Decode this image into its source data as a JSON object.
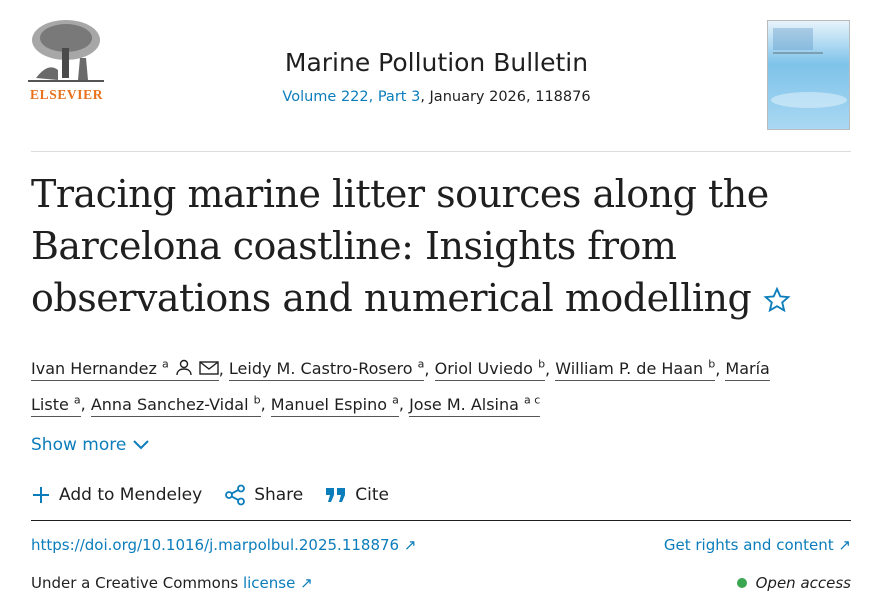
{
  "header": {
    "publisher": "ELSEVIER",
    "journal": "Marine Pollution Bulletin",
    "volume_link": "Volume 222, Part 3",
    "issue_details": ", January 2026, 118876"
  },
  "article": {
    "title": "Tracing marine litter sources along the Barcelona coastline: Insights from observations and numerical modelling",
    "authors": [
      {
        "name": "Ivan Hernandez",
        "affiliation": "a"
      },
      {
        "name": "Leidy M. Castro-Rosero",
        "affiliation": "a"
      },
      {
        "name": "Oriol Uviedo",
        "affiliation": "b"
      },
      {
        "name": "William P. de Haan",
        "affiliation": "b"
      },
      {
        "name": "María Liste",
        "affiliation": "a"
      },
      {
        "name": "Anna Sanchez-Vidal",
        "affiliation": "b"
      },
      {
        "name": "Manuel Espino",
        "affiliation": "a"
      },
      {
        "name": "Jose M. Alsina",
        "affiliation": "a c"
      }
    ],
    "author_separator": ",",
    "show_more": "Show more",
    "actions": [
      "Add to Mendeley",
      "Share",
      "Cite"
    ],
    "doi": "https://doi.org/10.1016/j.marpolbul.2025.118876",
    "rights": "Get rights and content",
    "license_prefix": "Under a Creative Commons ",
    "license_link": "license",
    "access": "Open access"
  }
}
